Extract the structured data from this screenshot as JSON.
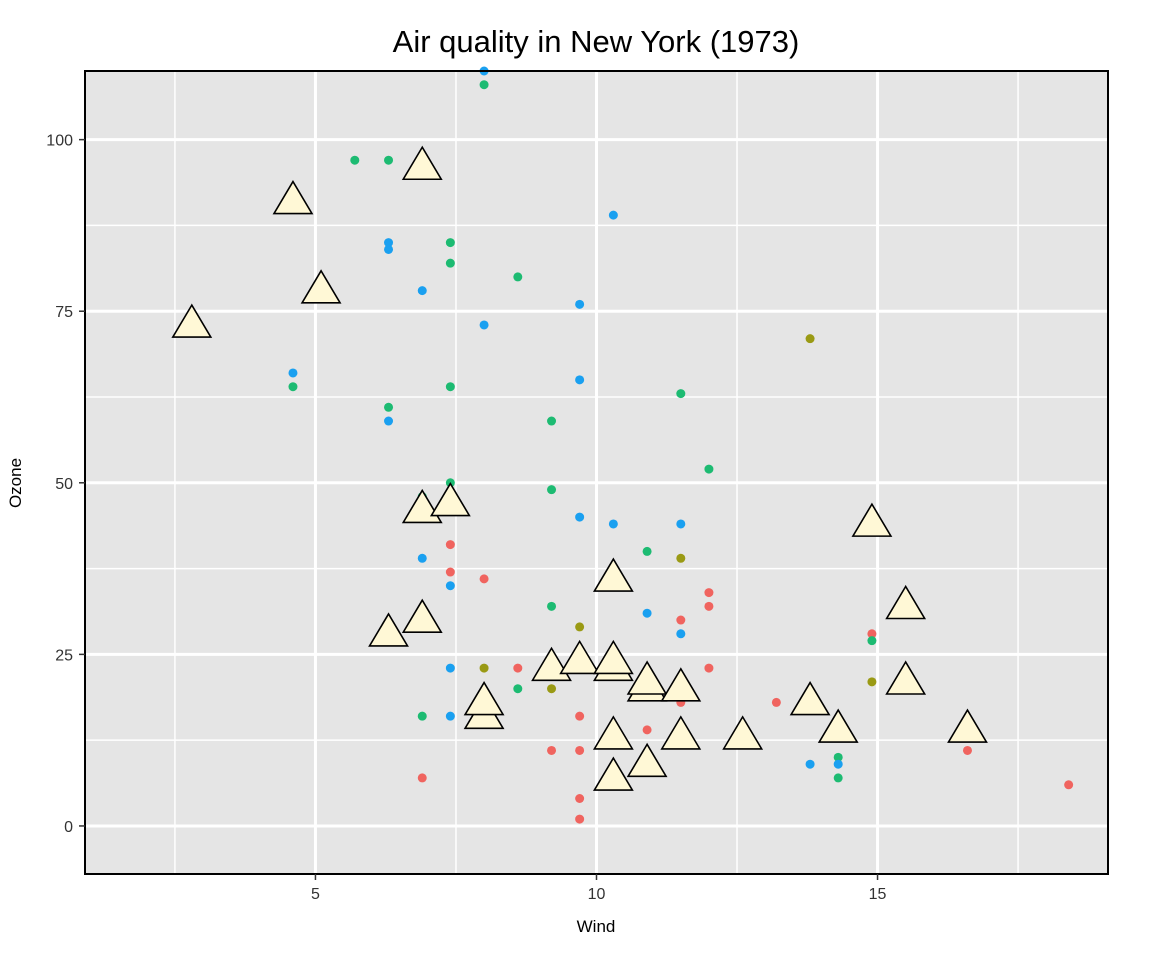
{
  "chart_data": {
    "type": "scatter",
    "title": "Air quality in New York (1973)",
    "xlabel": "Wind",
    "ylabel": "Ozone",
    "xlim": [
      0.9,
      19.1
    ],
    "ylim": [
      -7,
      110
    ],
    "x_ticks": [
      5,
      10,
      15
    ],
    "y_ticks": [
      0,
      25,
      50,
      75,
      100
    ],
    "x_tick_labels": [
      "5",
      "10",
      "15"
    ],
    "y_tick_labels": [
      "0",
      "25",
      "50",
      "75",
      "100"
    ],
    "grid": true,
    "legend": "none",
    "colors": {
      "panel_bg": "#e5e5e5",
      "grid": "#ffffff",
      "triangle_fill": "#fff8d6",
      "triangle_stroke": "#000000",
      "red": "#f0645f",
      "olive": "#9a9a14",
      "green": "#1dbb72",
      "blue": "#1aa0f0"
    },
    "series": [
      {
        "color_key": "red",
        "marker": "circle",
        "points": [
          [
            6.9,
            7
          ],
          [
            7.4,
            41
          ],
          [
            7.4,
            37
          ],
          [
            8.0,
            36
          ],
          [
            8.6,
            23
          ],
          [
            9.2,
            11
          ],
          [
            9.7,
            16
          ],
          [
            9.7,
            11
          ],
          [
            9.7,
            4
          ],
          [
            9.7,
            1
          ],
          [
            10.9,
            14
          ],
          [
            11.5,
            30
          ],
          [
            11.5,
            18
          ],
          [
            11.5,
            14
          ],
          [
            12.0,
            34
          ],
          [
            12.0,
            32
          ],
          [
            12.0,
            23
          ],
          [
            12.6,
            12
          ],
          [
            13.2,
            18
          ],
          [
            13.8,
            19
          ],
          [
            14.9,
            45
          ],
          [
            14.9,
            28
          ],
          [
            16.6,
            11
          ],
          [
            18.4,
            6
          ]
        ]
      },
      {
        "color_key": "olive",
        "marker": "circle",
        "points": [
          [
            8.0,
            23
          ],
          [
            9.2,
            20
          ],
          [
            9.7,
            29
          ],
          [
            10.3,
            13
          ],
          [
            11.5,
            39
          ],
          [
            11.5,
            12
          ],
          [
            13.8,
            71
          ],
          [
            14.9,
            21
          ]
        ]
      },
      {
        "color_key": "green",
        "marker": "circle",
        "points": [
          [
            4.6,
            64
          ],
          [
            5.1,
            79
          ],
          [
            5.1,
            77
          ],
          [
            5.7,
            97
          ],
          [
            6.3,
            97
          ],
          [
            6.3,
            61
          ],
          [
            6.9,
            48
          ],
          [
            6.9,
            16
          ],
          [
            7.4,
            85
          ],
          [
            7.4,
            82
          ],
          [
            7.4,
            64
          ],
          [
            7.4,
            50
          ],
          [
            8.0,
            108
          ],
          [
            8.6,
            80
          ],
          [
            8.6,
            20
          ],
          [
            9.2,
            59
          ],
          [
            9.2,
            49
          ],
          [
            9.2,
            32
          ],
          [
            10.3,
            35
          ],
          [
            10.9,
            40
          ],
          [
            11.5,
            63
          ],
          [
            12.0,
            52
          ],
          [
            14.3,
            10
          ],
          [
            14.3,
            7
          ],
          [
            14.9,
            27
          ]
        ]
      },
      {
        "color_key": "blue",
        "marker": "circle",
        "points": [
          [
            4.6,
            66
          ],
          [
            6.3,
            85
          ],
          [
            6.3,
            84
          ],
          [
            6.3,
            59
          ],
          [
            6.9,
            78
          ],
          [
            6.9,
            39
          ],
          [
            7.4,
            35
          ],
          [
            7.4,
            23
          ],
          [
            7.4,
            16
          ],
          [
            8.0,
            110
          ],
          [
            8.0,
            73
          ],
          [
            9.7,
            76
          ],
          [
            9.7,
            65
          ],
          [
            9.7,
            45
          ],
          [
            10.3,
            89
          ],
          [
            10.3,
            44
          ],
          [
            10.3,
            22
          ],
          [
            10.9,
            31
          ],
          [
            11.5,
            44
          ],
          [
            11.5,
            28
          ],
          [
            13.8,
            9
          ],
          [
            14.3,
            9
          ],
          [
            15.5,
            21
          ]
        ]
      },
      {
        "color_key": "triangle_fill",
        "marker": "triangle",
        "points": [
          [
            2.8,
            73
          ],
          [
            4.6,
            91
          ],
          [
            5.1,
            78
          ],
          [
            6.9,
            96
          ],
          [
            6.9,
            46
          ],
          [
            7.4,
            47
          ],
          [
            6.9,
            30
          ],
          [
            6.3,
            28
          ],
          [
            8.0,
            16
          ],
          [
            8.0,
            18
          ],
          [
            9.2,
            23
          ],
          [
            9.7,
            24
          ],
          [
            10.3,
            23
          ],
          [
            10.3,
            24
          ],
          [
            10.3,
            36
          ],
          [
            10.3,
            13
          ],
          [
            10.3,
            7
          ],
          [
            10.9,
            9
          ],
          [
            10.9,
            20
          ],
          [
            10.9,
            21
          ],
          [
            11.5,
            20
          ],
          [
            11.5,
            13
          ],
          [
            12.6,
            13
          ],
          [
            13.8,
            18
          ],
          [
            14.3,
            14
          ],
          [
            14.9,
            44
          ],
          [
            15.5,
            32
          ],
          [
            15.5,
            21
          ],
          [
            16.6,
            14
          ]
        ]
      }
    ]
  }
}
